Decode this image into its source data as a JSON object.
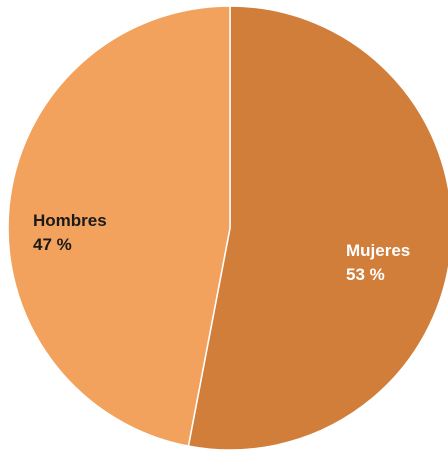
{
  "chart_data": {
    "type": "pie",
    "start_angle_deg": 0,
    "direction": "clockwise",
    "slices": [
      {
        "label": "Mujeres",
        "value": 53,
        "value_text": "53 %",
        "color": "#d27e3b",
        "label_color": "#ffffff"
      },
      {
        "label": "Hombres",
        "value": 47,
        "value_text": "47 %",
        "color": "#f2a25c",
        "label_color": "#1a1a1a"
      }
    ],
    "separator_color": "#ffffff",
    "legend": "none"
  }
}
